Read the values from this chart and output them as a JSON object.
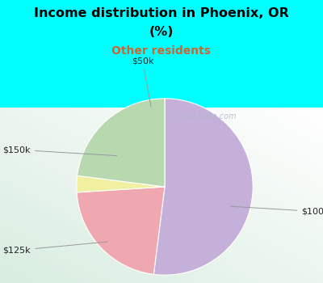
{
  "title_line1": "Income distribution in Phoenix, OR",
  "title_line2": "(%)",
  "subtitle": "Other residents",
  "title_color": "#000000",
  "subtitle_color": "#cc6633",
  "bg_color": "#00FFFF",
  "chart_bg_color": "#e8f5ee",
  "slices": [
    {
      "label": "$100k",
      "value": 52,
      "color": "#c4b0d8"
    },
    {
      "label": "$50k",
      "value": 22,
      "color": "#f0a8b0"
    },
    {
      "label": "$150k",
      "value": 3,
      "color": "#f0f0a0"
    },
    {
      "label": "$125k",
      "value": 23,
      "color": "#b8d8b0"
    }
  ],
  "watermark": "ⓘ City-Data.com"
}
